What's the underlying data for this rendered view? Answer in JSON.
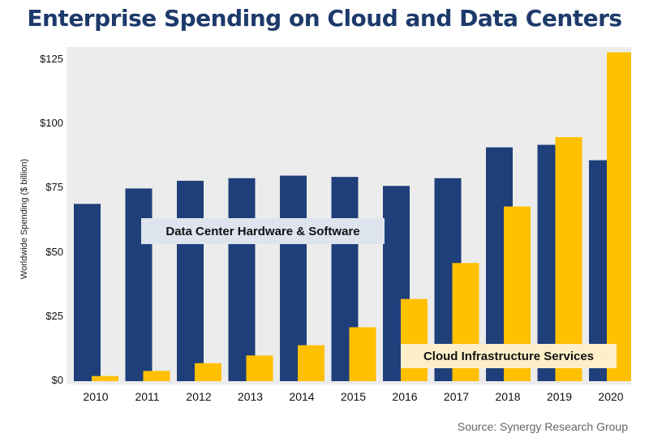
{
  "title": "Enterprise Spending on Cloud and Data Centers",
  "source": "Source: Synergy Research Group",
  "chart_data": {
    "type": "bar",
    "title": "Enterprise Spending on Cloud and Data Centers",
    "xlabel": "",
    "ylabel": "Worldwide Spending ($ billion)",
    "ylim": [
      0,
      127
    ],
    "yticks": [
      "$0",
      "$25",
      "$50",
      "$75",
      "$100",
      "$125"
    ],
    "ytick_values": [
      0,
      25,
      50,
      75,
      100,
      125
    ],
    "categories": [
      "2010",
      "2011",
      "2012",
      "2013",
      "2014",
      "2015",
      "2016",
      "2017",
      "2018",
      "2019",
      "2020"
    ],
    "series": [
      {
        "name": "Data Center Hardware & Software",
        "color": "#1e3f7a",
        "values": [
          69,
          75,
          78,
          79,
          80,
          79.5,
          76,
          79,
          91,
          92,
          86
        ]
      },
      {
        "name": "Cloud Infrastructure Services",
        "color": "#ffc000",
        "values": [
          2,
          4,
          7,
          10,
          14,
          21,
          32,
          46,
          68,
          95,
          128
        ]
      }
    ],
    "grid": false,
    "legend": "inline labels"
  }
}
